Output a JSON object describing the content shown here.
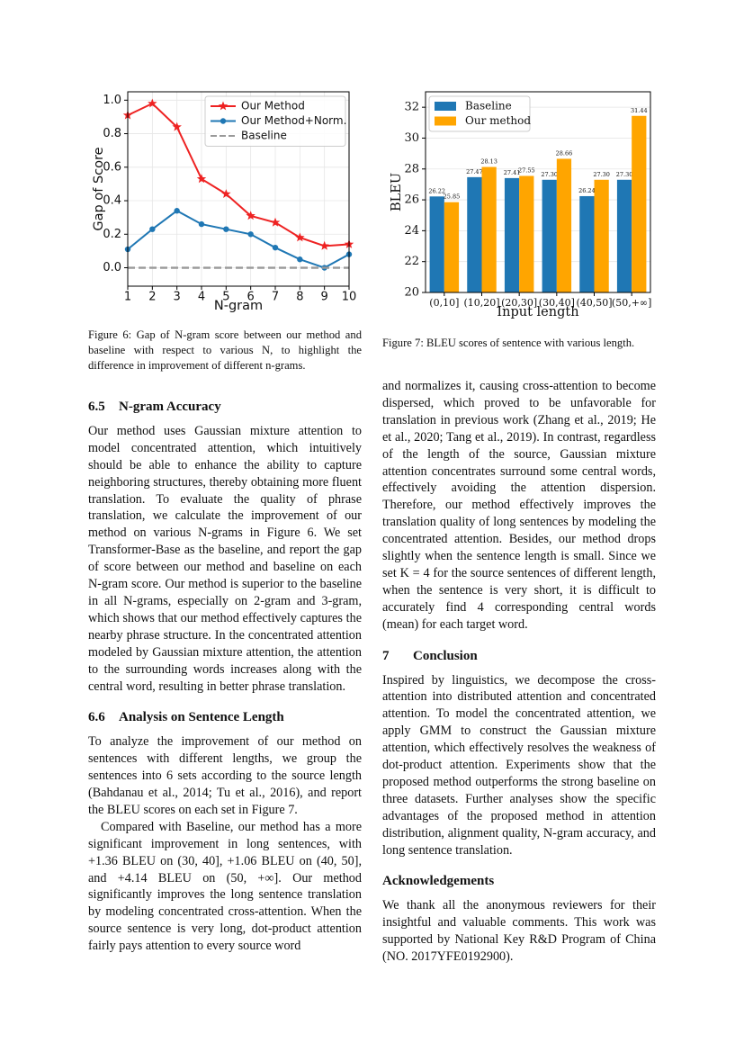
{
  "chart_data": [
    {
      "type": "line",
      "x": [
        1,
        2,
        3,
        4,
        5,
        6,
        7,
        8,
        9,
        10
      ],
      "xlabel": "N-gram",
      "ylabel": "Gap of Score",
      "xlim": [
        1,
        10
      ],
      "xticks": [
        1,
        2,
        3,
        4,
        5,
        6,
        7,
        8,
        9,
        10
      ],
      "ylim": [
        -0.11,
        1.05
      ],
      "yticks": [
        {
          "value": 0,
          "label": "0.0"
        },
        0.2,
        0.4,
        0.6,
        0.8,
        {
          "value": 1,
          "label": "1.0"
        }
      ],
      "grid": true,
      "legend": "upper right",
      "series": [
        {
          "name": "Our Method",
          "color": "#ee2222",
          "marker": "star",
          "values": [
            0.91,
            0.98,
            0.84,
            0.53,
            0.44,
            0.31,
            0.27,
            0.18,
            0.13,
            0.14
          ]
        },
        {
          "name": "Our Method+Norm.",
          "color": "#1f77b4",
          "marker": "circle",
          "values": [
            0.11,
            0.23,
            0.34,
            0.26,
            0.23,
            0.2,
            0.12,
            0.05,
            0.0,
            0.08
          ]
        },
        {
          "name": "Baseline",
          "color": "#999999",
          "linestyle": "dashed",
          "values": [
            0,
            0,
            0,
            0,
            0,
            0,
            0,
            0,
            0,
            0
          ]
        }
      ],
      "caption": "Figure 6: Gap of N-gram score between our method and baseline with respect to various N, to highlight the difference in improvement of different n-grams."
    },
    {
      "type": "bar",
      "categories": [
        "(0,10]",
        "(10,20]",
        "(20,30]",
        "(30,40]",
        "(40,50]",
        "(50,+∞]"
      ],
      "xlabel": "Input length",
      "ylabel": "BLEU",
      "ylim": [
        20,
        33
      ],
      "yticks": [
        20,
        22,
        24,
        26,
        28,
        30,
        32
      ],
      "grid": true,
      "legend": "upper left",
      "series": [
        {
          "name": "Baseline",
          "color": "#1f77b4",
          "values": [
            26.22,
            27.47,
            27.41,
            27.3,
            26.24,
            27.3
          ],
          "value_labels": [
            "26.22",
            "27.47",
            "27.41",
            "27.30",
            "26.24",
            "27.30"
          ]
        },
        {
          "name": "Our method",
          "color": "#ffa500",
          "values": [
            25.85,
            28.13,
            27.55,
            28.66,
            27.3,
            31.44
          ],
          "value_labels": [
            "25.85",
            "28.13",
            "27.55",
            "28.66",
            "27.30",
            "31.44"
          ]
        }
      ],
      "caption": "Figure 7: BLEU scores of sentence with various length."
    }
  ],
  "columns": [
    [
      {
        "number": "6.5",
        "title": "N-gram Accuracy"
      },
      {
        "text": "Our method uses Gaussian mixture attention to model concentrated attention, which intuitively should be able to enhance the ability to capture neighboring structures, thereby obtaining more fluent translation. To evaluate the quality of phrase translation, we calculate the improvement of our method on various N-grams in Figure 6. We set Transformer-Base as the baseline, and report the gap of score between our method and baseline on each N-gram score. Our method is superior to the baseline in all N-grams, especially on 2-gram and 3-gram, which shows that our method effectively captures the nearby phrase structure. In the concentrated attention modeled by Gaussian mixture attention, the attention to the surrounding words increases along with the central word, resulting in better phrase translation."
      },
      {
        "number": "6.6",
        "title": "Analysis on Sentence Length"
      },
      {
        "text": "To analyze the improvement of our method on sentences with different lengths, we group the sentences into 6 sets according to the source length (Bahdanau et al., 2014; Tu et al., 2016), and report the BLEU scores on each set in Figure 7."
      },
      {
        "text": "Compared with Baseline, our method has a more significant improvement in long sentences, with +1.36 BLEU on (30, 40], +1.06 BLEU on (40, 50], and +4.14 BLEU on (50, +∞]. Our method significantly improves the long sentence translation by modeling concentrated cross-attention. When the source sentence is very long, dot-product attention fairly pays attention to every source word"
      }
    ],
    [
      {
        "text": "and normalizes it, causing cross-attention to become dispersed, which proved to be unfavorable for translation in previous work (Zhang et al., 2019; He et al., 2020; Tang et al., 2019). In contrast, regardless of the length of the source, Gaussian mixture attention concentrates surround some central words, effectively avoiding the attention dispersion. Therefore, our method effectively improves the translation quality of long sentences by modeling the concentrated attention. Besides, our method drops slightly when the sentence length is small. Since we set K = 4 for the source sentences of different length, when the sentence is very short, it is difficult to accurately find 4 corresponding central words (mean) for each target word."
      },
      {
        "number": "7",
        "title": "Conclusion"
      },
      {
        "text": "Inspired by linguistics, we decompose the cross-attention into distributed attention and concentrated attention. To model the concentrated attention, we apply GMM to construct the Gaussian mixture attention, which effectively resolves the weakness of dot-product attention. Experiments show that the proposed method outperforms the strong baseline on three datasets. Further analyses show the specific advantages of the proposed method in attention distribution, alignment quality, N-gram accuracy, and long sentence translation."
      },
      {
        "title": "Acknowledgements"
      },
      {
        "text": "We thank all the anonymous reviewers for their insightful and valuable comments. This work was supported by National Key R&D Program of China (NO. 2017YFE0192900)."
      }
    ]
  ]
}
